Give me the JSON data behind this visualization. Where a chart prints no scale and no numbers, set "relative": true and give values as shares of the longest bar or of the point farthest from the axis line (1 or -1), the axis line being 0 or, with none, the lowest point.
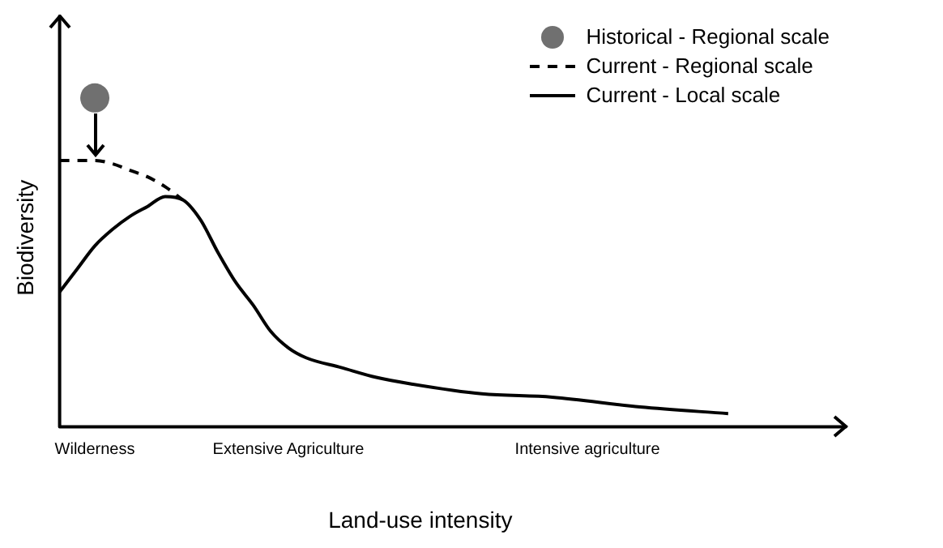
{
  "chart_data": {
    "type": "line",
    "relative": true,
    "xlabel": "Land-use intensity",
    "ylabel": "Biodiversity",
    "legend": "top right",
    "categories": [
      null,
      null,
      "Wilderness",
      null,
      null,
      null,
      null,
      null,
      null,
      null,
      null,
      null,
      null,
      "Extensive Agriculture",
      null,
      null,
      null,
      null,
      null,
      null,
      null,
      null,
      null,
      null,
      null,
      null,
      null,
      null,
      null,
      null,
      "Intensive agriculture",
      null,
      null,
      null,
      null,
      null,
      null,
      null,
      null,
      null,
      null,
      null
    ],
    "series": [
      {
        "name": "Historical - Regional scale",
        "type": "scatter",
        "marker": "circle",
        "color": "#707070",
        "values": [
          null,
          null,
          1.0,
          null,
          null,
          null,
          null,
          null,
          null,
          null,
          null,
          null,
          null,
          null,
          null,
          null,
          null,
          null,
          null,
          null,
          null,
          null,
          null,
          null,
          null,
          null,
          null,
          null,
          null,
          null,
          null,
          null,
          null,
          null,
          null,
          null,
          null,
          null,
          null,
          null,
          null,
          null
        ]
      },
      {
        "name": "Current - Regional scale",
        "type": "line",
        "line_style": "dashed",
        "marker": "none",
        "color": "#000000",
        "values": [
          0.81,
          0.81,
          0.81,
          0.8,
          0.78,
          0.76,
          0.73,
          0.69,
          null,
          null,
          null,
          null,
          null,
          null,
          null,
          null,
          null,
          null,
          null,
          null,
          null,
          null,
          null,
          null,
          null,
          null,
          null,
          null,
          null,
          null,
          null,
          null,
          null,
          null,
          null,
          null,
          null,
          null,
          null,
          null,
          null,
          null
        ]
      },
      {
        "name": "Current - Local scale",
        "type": "line",
        "line_style": "solid",
        "marker": "none",
        "color": "#000000",
        "values": [
          0.41,
          0.48,
          0.55,
          0.6,
          0.64,
          0.67,
          0.7,
          0.69,
          0.63,
          0.53,
          0.44,
          0.37,
          0.29,
          0.24,
          0.21,
          null,
          0.18,
          null,
          0.15,
          null,
          0.13,
          null,
          null,
          null,
          0.1,
          null,
          null,
          null,
          0.09,
          null,
          null,
          null,
          null,
          0.06,
          null,
          null,
          null,
          null,
          0.04,
          null,
          null,
          null
        ]
      }
    ]
  }
}
